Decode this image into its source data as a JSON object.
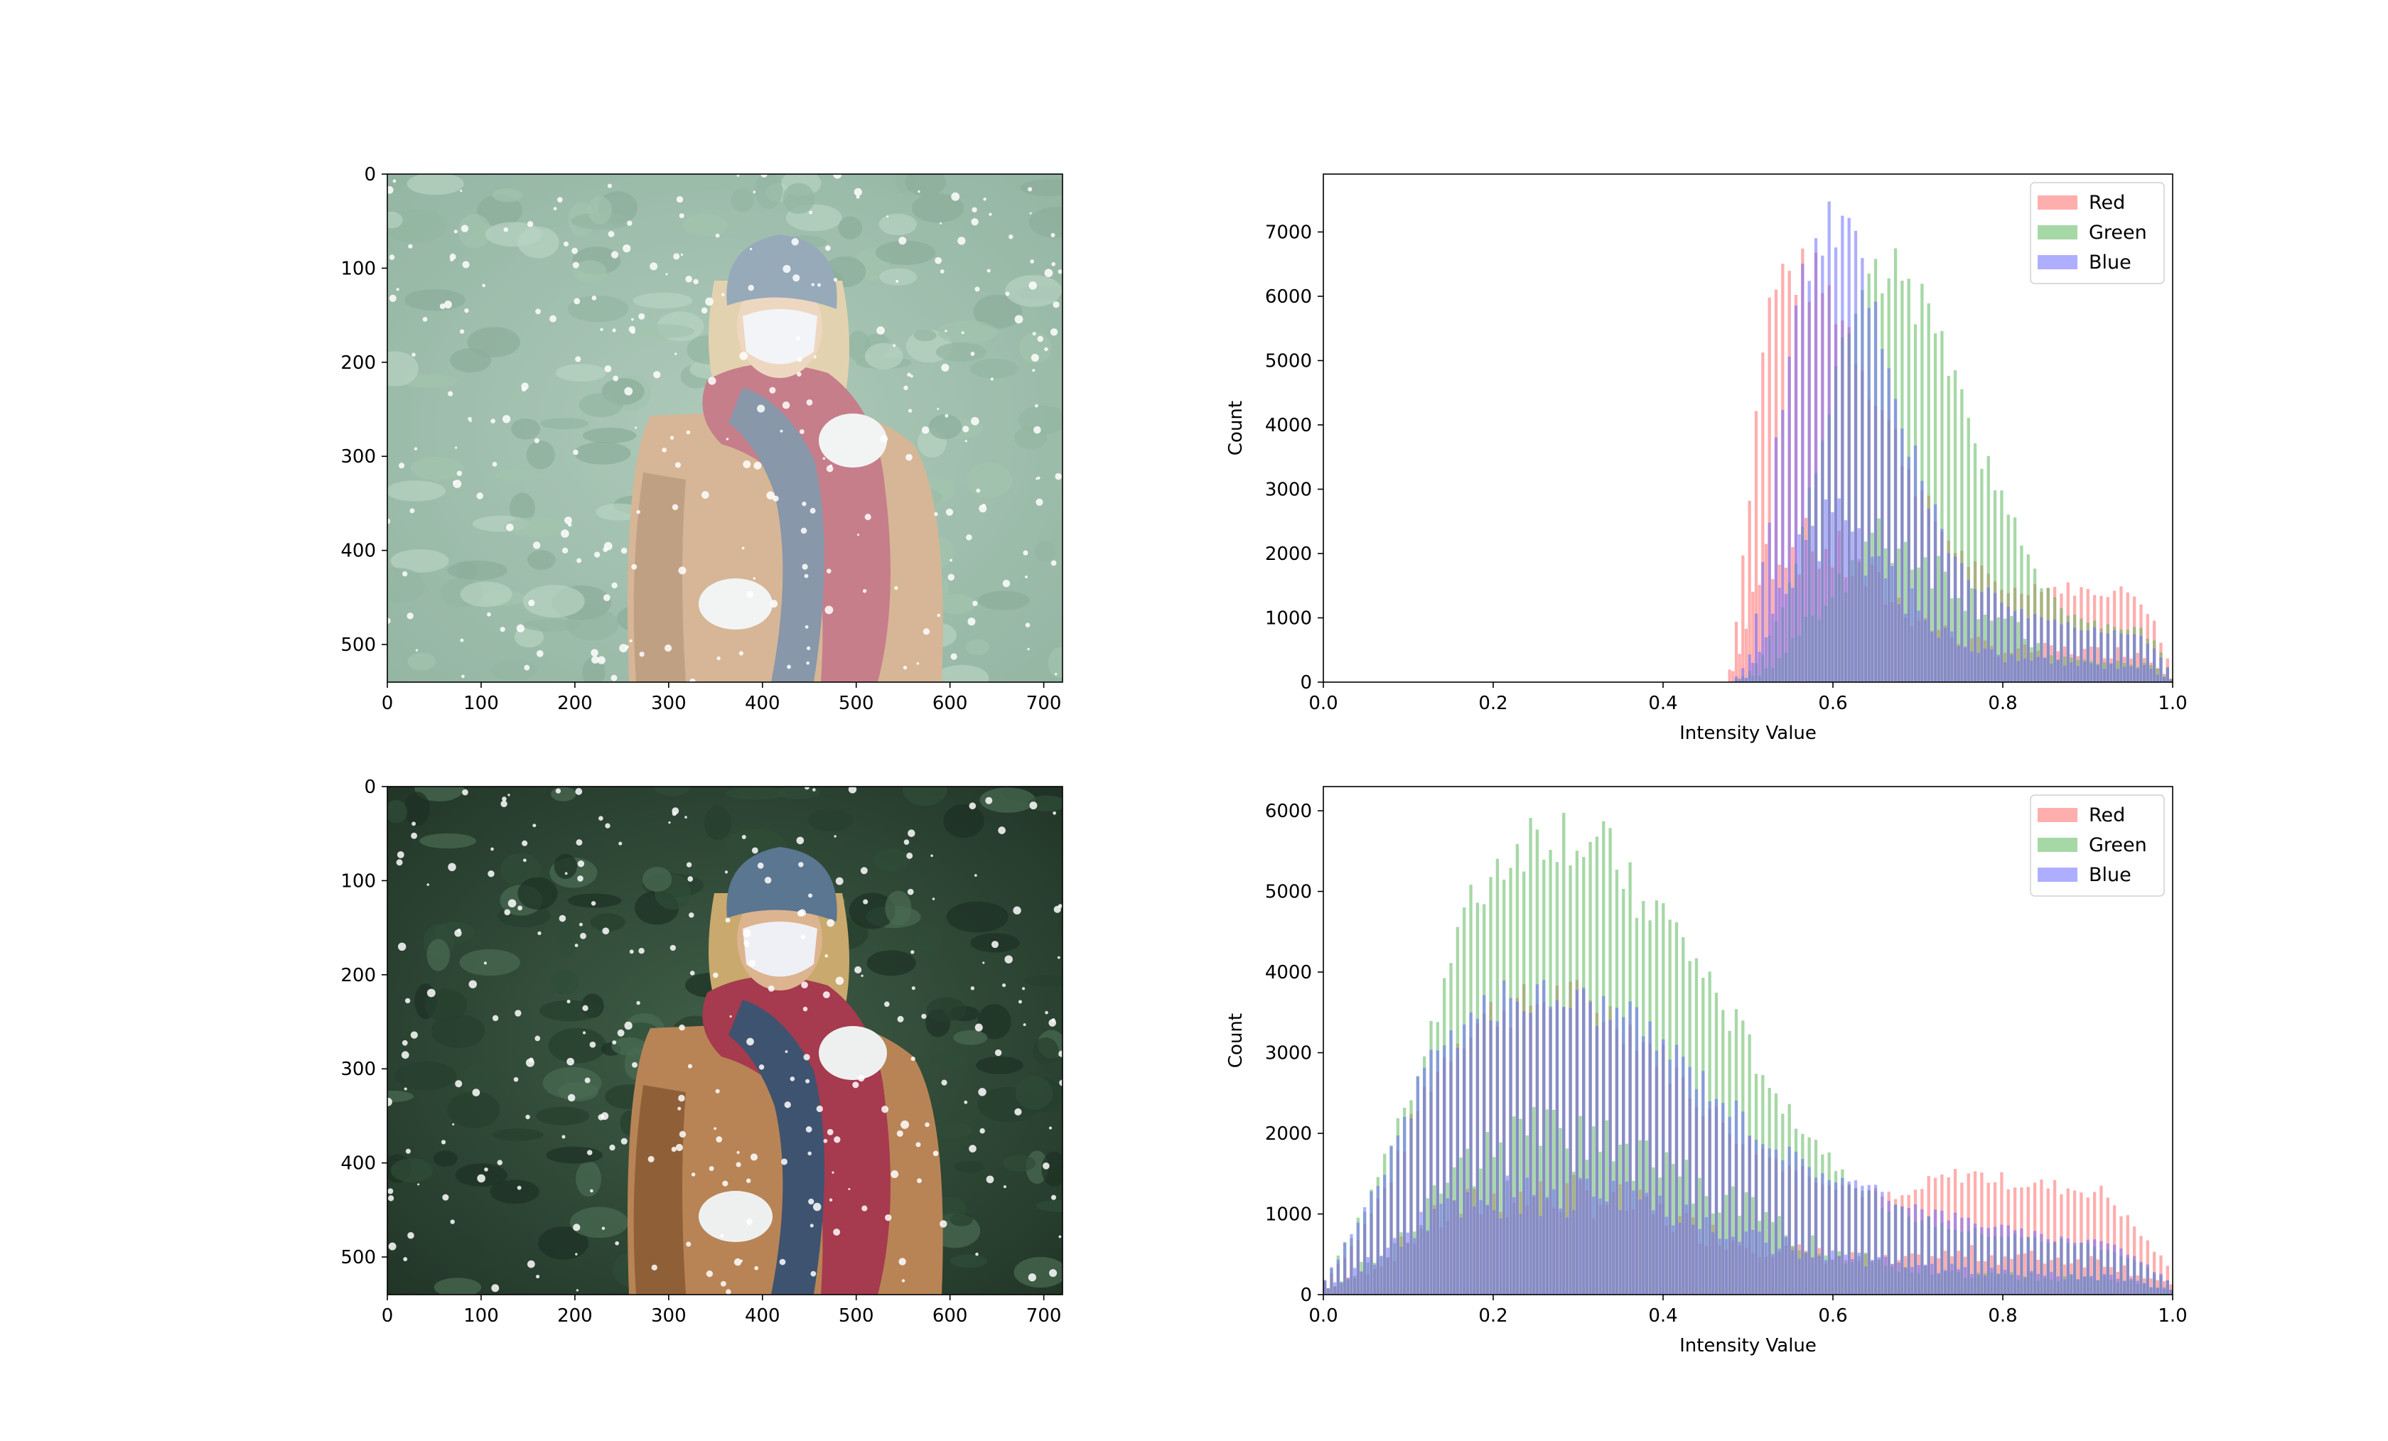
{
  "chart_data": [
    {
      "type": "image",
      "panel": "top-left",
      "description_tag": "low-contrast",
      "xlim": [
        0,
        720
      ],
      "ylim": [
        540,
        0
      ],
      "xticks": [
        "0",
        "100",
        "200",
        "300",
        "400",
        "500",
        "600",
        "700"
      ],
      "yticks": [
        "0",
        "100",
        "200",
        "300",
        "400",
        "500"
      ]
    },
    {
      "type": "bar",
      "panel": "top-right",
      "xlabel": "Intensity Value",
      "ylabel": "Count",
      "xlim": [
        0.0,
        1.0
      ],
      "ylim": [
        0,
        7900
      ],
      "xticks": [
        "0.0",
        "0.2",
        "0.4",
        "0.6",
        "0.8",
        "1.0"
      ],
      "yticks": [
        "0",
        "1000",
        "2000",
        "3000",
        "4000",
        "5000",
        "6000",
        "7000"
      ],
      "legend": "top-right",
      "bins": 256,
      "x": [
        0.48,
        0.5,
        0.52,
        0.54,
        0.56,
        0.58,
        0.6,
        0.62,
        0.64,
        0.66,
        0.68,
        0.7,
        0.72,
        0.74,
        0.76,
        0.78,
        0.8,
        0.82,
        0.84,
        0.86,
        0.88,
        0.9,
        0.92,
        0.94,
        0.96,
        0.98,
        1.0
      ],
      "series": [
        {
          "name": "Red",
          "color": "#ff6b6b",
          "values": [
            200,
            2800,
            5800,
            6500,
            6500,
            6400,
            6100,
            5600,
            4900,
            4300,
            3700,
            3100,
            2600,
            2200,
            1900,
            1700,
            1500,
            1450,
            1550,
            1500,
            1500,
            1450,
            1450,
            1450,
            1400,
            900,
            150
          ]
        },
        {
          "name": "Green",
          "color": "#5cb85c",
          "values": [
            0,
            150,
            500,
            1200,
            2200,
            3600,
            4700,
            5600,
            6200,
            6600,
            6500,
            6100,
            5500,
            4800,
            4100,
            3500,
            2900,
            2300,
            1700,
            1300,
            1050,
            950,
            900,
            900,
            850,
            600,
            100
          ]
        },
        {
          "name": "Blue",
          "color": "#6b6bff",
          "values": [
            0,
            300,
            2000,
            4500,
            6200,
            7000,
            7300,
            7100,
            6400,
            5300,
            4300,
            3400,
            2700,
            2100,
            1700,
            1450,
            1250,
            1100,
            1000,
            950,
            900,
            850,
            800,
            800,
            800,
            500,
            100
          ]
        }
      ]
    },
    {
      "type": "image",
      "panel": "bottom-left",
      "description_tag": "enhanced",
      "xlim": [
        0,
        720
      ],
      "ylim": [
        540,
        0
      ],
      "xticks": [
        "0",
        "100",
        "200",
        "300",
        "400",
        "500",
        "600",
        "700"
      ],
      "yticks": [
        "0",
        "100",
        "200",
        "300",
        "400",
        "500"
      ]
    },
    {
      "type": "bar",
      "panel": "bottom-right",
      "xlabel": "Intensity Value",
      "ylabel": "Count",
      "xlim": [
        0.0,
        1.0
      ],
      "ylim": [
        0,
        6300
      ],
      "xticks": [
        "0.0",
        "0.2",
        "0.4",
        "0.6",
        "0.8",
        "1.0"
      ],
      "yticks": [
        "0",
        "1000",
        "2000",
        "3000",
        "4000",
        "5000",
        "6000"
      ],
      "legend": "top-right",
      "bins": 256,
      "x": [
        0.0,
        0.04,
        0.08,
        0.12,
        0.16,
        0.2,
        0.24,
        0.28,
        0.32,
        0.36,
        0.4,
        0.44,
        0.48,
        0.52,
        0.56,
        0.6,
        0.64,
        0.68,
        0.72,
        0.76,
        0.8,
        0.84,
        0.88,
        0.92,
        0.96,
        1.0
      ],
      "series": [
        {
          "name": "Red",
          "color": "#ff6b6b",
          "values": [
            150,
            700,
            1500,
            2600,
            3300,
            3600,
            3700,
            3800,
            3700,
            3400,
            3000,
            2500,
            2100,
            1800,
            1600,
            1450,
            1300,
            1200,
            1450,
            1550,
            1450,
            1400,
            1350,
            1300,
            800,
            300
          ]
        },
        {
          "name": "Green",
          "color": "#5cb85c",
          "values": [
            150,
            900,
            1900,
            3200,
            4600,
            5400,
            5800,
            5900,
            5700,
            5300,
            4800,
            4200,
            3500,
            2800,
            2200,
            1700,
            1300,
            1050,
            900,
            800,
            750,
            700,
            650,
            600,
            400,
            150
          ]
        },
        {
          "name": "Blue",
          "color": "#6b6bff",
          "values": [
            150,
            900,
            1800,
            2800,
            3400,
            3700,
            3800,
            3800,
            3700,
            3500,
            3200,
            2800,
            2400,
            2000,
            1700,
            1500,
            1350,
            1200,
            1050,
            950,
            850,
            750,
            700,
            700,
            450,
            150
          ]
        }
      ]
    }
  ]
}
